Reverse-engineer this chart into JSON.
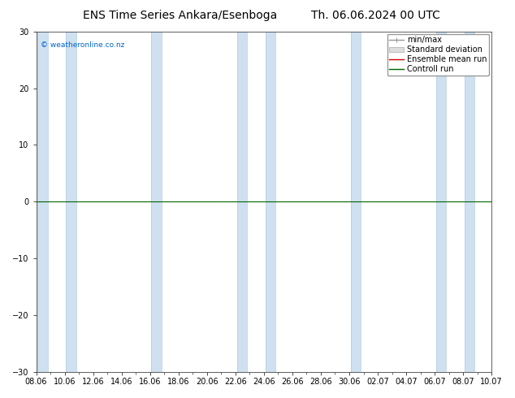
{
  "title_left": "ENS Time Series Ankara/Esenboga",
  "title_right": "Th. 06.06.2024 00 UTC",
  "ylim": [
    -30,
    30
  ],
  "yticks": [
    -30,
    -20,
    -10,
    0,
    10,
    20,
    30
  ],
  "xlabels": [
    "08.06",
    "10.06",
    "12.06",
    "14.06",
    "16.06",
    "18.06",
    "20.06",
    "22.06",
    "24.06",
    "26.06",
    "28.06",
    "30.06",
    "02.07",
    "04.07",
    "06.07",
    "08.07",
    "10.07"
  ],
  "background_color": "#ffffff",
  "plot_bg_color": "#ffffff",
  "band_color": "#cfe0f0",
  "band_edge_color": "#b0ccdf",
  "zero_line_color": "#006400",
  "watermark": "© weatheronline.co.nz",
  "watermark_color": "#0066cc",
  "title_fontsize": 10,
  "tick_fontsize": 7,
  "legend_fontsize": 7,
  "figsize": [
    6.34,
    4.9
  ],
  "dpi": 100,
  "band_ranges": [
    [
      0,
      1
    ],
    [
      1,
      2
    ],
    [
      4,
      5
    ],
    [
      7,
      8
    ],
    [
      8,
      9
    ],
    [
      11,
      12
    ],
    [
      14,
      15
    ],
    [
      15,
      16
    ]
  ],
  "legend_minmax_color": "#999999",
  "legend_std_facecolor": "#dddddd",
  "legend_std_edgecolor": "#aaaaaa",
  "legend_mean_color": "#cc0000",
  "legend_control_color": "#006400"
}
